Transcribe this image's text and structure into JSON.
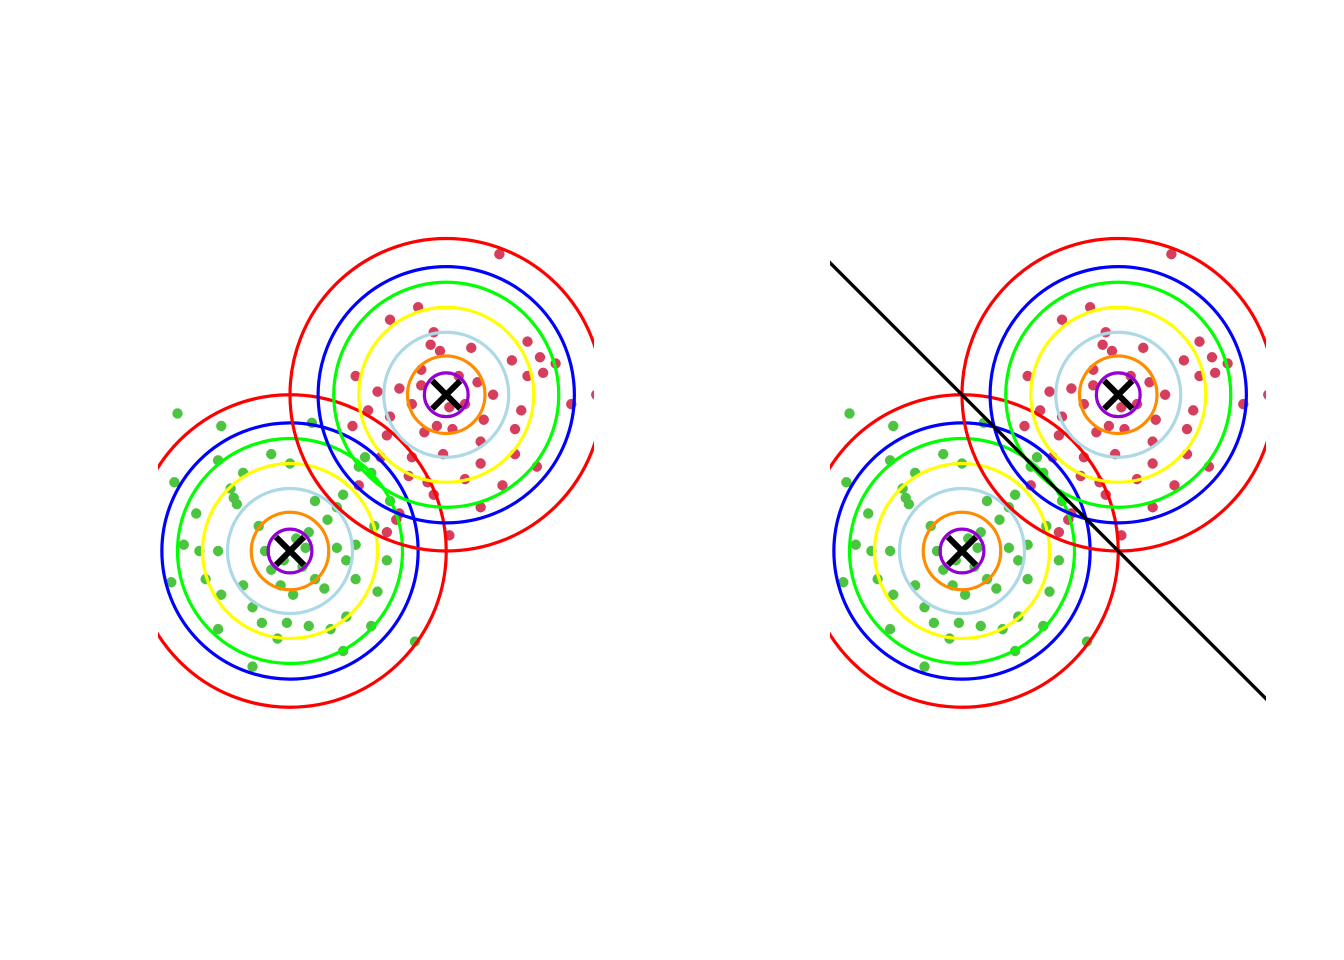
{
  "chart_data": [
    {
      "type": "scatter",
      "title": "",
      "xlabel": "",
      "ylabel": "",
      "grid": false,
      "axes_visible": false,
      "xlim": [
        -2.1,
        4.9
      ],
      "ylim": [
        -2.6,
        4.6
      ],
      "centers": [
        {
          "x": 0,
          "y": 0
        },
        {
          "x": 2.5,
          "y": 2.5
        }
      ],
      "contour_radii": [
        0.35,
        0.62,
        1.0,
        1.4,
        1.8,
        2.05,
        2.5
      ],
      "contour_colors": [
        "#9400D3",
        "#FF8C00",
        "#ADD8E6",
        "#FFFF00",
        "#00FF00",
        "#0000FF",
        "#FF0000"
      ],
      "colors": {
        "series_0": "#4DC441",
        "series_1": "#D63E5E",
        "center_marker": "#000000"
      },
      "series": [
        {
          "points": [
            [
              -1.8,
              2.2
            ],
            [
              -1.1,
              2.0
            ],
            [
              0.35,
              2.05
            ],
            [
              -1.15,
              1.45
            ],
            [
              -0.3,
              1.55
            ],
            [
              0.0,
              1.4
            ],
            [
              1.2,
              1.5
            ],
            [
              1.6,
              0.8
            ],
            [
              -1.85,
              1.1
            ],
            [
              -0.9,
              0.85
            ],
            [
              0.4,
              0.8
            ],
            [
              -1.5,
              0.6
            ],
            [
              -0.85,
              0.75
            ],
            [
              0.6,
              0.5
            ],
            [
              0.75,
              0.7
            ],
            [
              0.85,
              0.9
            ],
            [
              1.35,
              0.4
            ],
            [
              -1.7,
              0.1
            ],
            [
              -0.5,
              0.4
            ],
            [
              0.3,
              0.3
            ],
            [
              0.9,
              -0.15
            ],
            [
              1.05,
              0.1
            ],
            [
              -1.45,
              0.0
            ],
            [
              -1.15,
              0.0
            ],
            [
              -0.4,
              0.0
            ],
            [
              0.25,
              0.05
            ],
            [
              0.75,
              0.05
            ],
            [
              1.55,
              -0.15
            ],
            [
              -1.9,
              -0.5
            ],
            [
              -1.35,
              -0.45
            ],
            [
              -0.75,
              -0.55
            ],
            [
              -0.15,
              -0.55
            ],
            [
              0.4,
              -0.45
            ],
            [
              1.05,
              -0.45
            ],
            [
              1.4,
              -0.65
            ],
            [
              -0.6,
              -0.9
            ],
            [
              0.05,
              -0.7
            ],
            [
              0.55,
              -0.6
            ],
            [
              0.9,
              -1.05
            ],
            [
              -1.15,
              -1.25
            ],
            [
              -0.45,
              -1.15
            ],
            [
              -0.05,
              -1.15
            ],
            [
              0.65,
              -1.25
            ],
            [
              1.3,
              -1.2
            ],
            [
              -0.2,
              -1.4
            ],
            [
              -0.6,
              -1.85
            ],
            [
              0.85,
              -1.6
            ],
            [
              2.0,
              -1.45
            ],
            [
              -1.1,
              -0.7
            ],
            [
              -0.3,
              -0.3
            ],
            [
              0.2,
              -0.25
            ],
            [
              0.1,
              0.2
            ],
            [
              -0.1,
              -0.15
            ],
            [
              1.3,
              1.25
            ],
            [
              1.1,
              1.35
            ],
            [
              -0.75,
              1.25
            ],
            [
              -0.95,
              1.0
            ],
            [
              0.3,
              -1.2
            ]
          ]
        },
        {
          "points": [
            [
              3.35,
              4.75
            ],
            [
              2.3,
              3.5
            ],
            [
              1.6,
              3.7
            ],
            [
              2.4,
              3.2
            ],
            [
              3.55,
              3.05
            ],
            [
              4.0,
              3.1
            ],
            [
              4.25,
              3.0
            ],
            [
              1.05,
              2.8
            ],
            [
              1.75,
              2.6
            ],
            [
              2.1,
              2.65
            ],
            [
              3.0,
              2.7
            ],
            [
              3.25,
              2.5
            ],
            [
              3.8,
              2.8
            ],
            [
              4.05,
              2.85
            ],
            [
              1.25,
              2.25
            ],
            [
              1.6,
              2.15
            ],
            [
              1.95,
              2.35
            ],
            [
              2.55,
              2.3
            ],
            [
              3.1,
              2.1
            ],
            [
              3.7,
              2.25
            ],
            [
              4.5,
              2.35
            ],
            [
              4.9,
              2.5
            ],
            [
              5.0,
              2.15
            ],
            [
              1.0,
              2.0
            ],
            [
              1.55,
              1.85
            ],
            [
              2.15,
              1.9
            ],
            [
              2.6,
              1.95
            ],
            [
              3.05,
              1.75
            ],
            [
              3.6,
              1.95
            ],
            [
              1.45,
              1.5
            ],
            [
              1.95,
              1.5
            ],
            [
              2.45,
              1.55
            ],
            [
              3.05,
              1.4
            ],
            [
              3.6,
              1.55
            ],
            [
              1.1,
              1.05
            ],
            [
              2.2,
              1.1
            ],
            [
              2.8,
              1.15
            ],
            [
              3.4,
              1.05
            ],
            [
              3.95,
              1.35
            ],
            [
              1.75,
              0.6
            ],
            [
              2.3,
              0.9
            ],
            [
              1.7,
              0.5
            ],
            [
              3.05,
              0.7
            ],
            [
              2.55,
              0.25
            ],
            [
              1.55,
              0.3
            ],
            [
              2.1,
              2.9
            ],
            [
              2.7,
              2.8
            ],
            [
              2.9,
              3.25
            ],
            [
              2.05,
              3.9
            ],
            [
              2.25,
              3.3
            ],
            [
              3.8,
              3.35
            ],
            [
              1.4,
              2.55
            ],
            [
              2.8,
              2.35
            ],
            [
              2.35,
              2.0
            ],
            [
              1.9,
              1.2
            ]
          ]
        }
      ]
    },
    {
      "type": "scatter",
      "title": "",
      "xlabel": "",
      "ylabel": "",
      "grid": false,
      "axes_visible": false,
      "xlim": [
        -2.1,
        4.9
      ],
      "ylim": [
        -2.6,
        4.6
      ],
      "centers": [
        {
          "x": 0,
          "y": 0
        },
        {
          "x": 2.5,
          "y": 2.5
        }
      ],
      "contour_radii": [
        0.35,
        0.62,
        1.0,
        1.4,
        1.8,
        2.05,
        2.5
      ],
      "contour_colors": [
        "#9400D3",
        "#FF8C00",
        "#ADD8E6",
        "#FFFF00",
        "#00FF00",
        "#0000FF",
        "#FF0000"
      ],
      "colors": {
        "series_0": "#4DC441",
        "series_1": "#D63E5E",
        "center_marker": "#000000",
        "boundary": "#000000"
      },
      "decision_boundary": {
        "x1": -2.15,
        "y1": 4.65,
        "x2": 4.9,
        "y2": -2.4
      },
      "series": [
        {
          "points_same_as_panel": 0,
          "series_index": 0
        },
        {
          "points_same_as_panel": 0,
          "series_index": 1
        }
      ]
    }
  ]
}
